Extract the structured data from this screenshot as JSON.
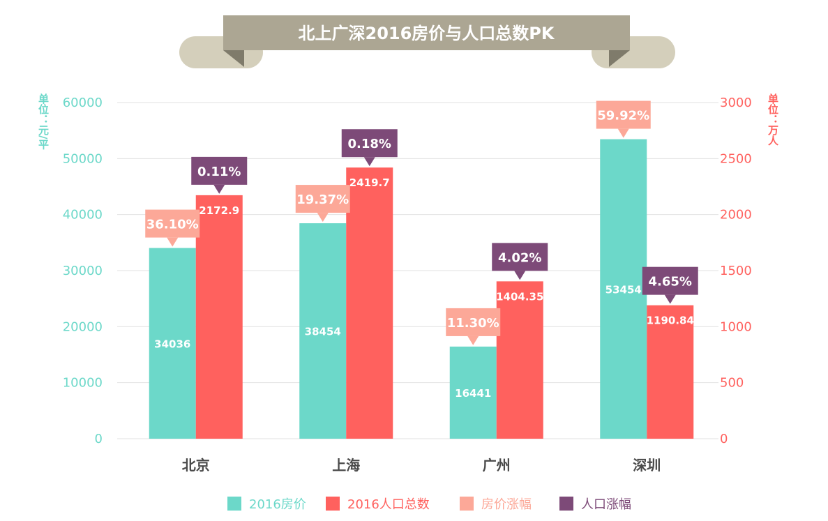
{
  "title": "北上广深2016房价与人口总数PK",
  "colors": {
    "price": "#6cd8c9",
    "population": "#ff615e",
    "price_growth": "#fca898",
    "population_growth": "#7d4a78",
    "banner": "#aca693",
    "banner_tail": "#d4cfbb",
    "banner_fold": "#7f7b6b",
    "grid": "#e2e2e2",
    "category_text": "#4a4a4a"
  },
  "chart_data": {
    "type": "bar",
    "title": "北上广深2016房价与人口总数PK",
    "categories": [
      "北京",
      "上海",
      "广州",
      "深圳"
    ],
    "y_left": {
      "unit_label": "单位：元/平",
      "ylim": [
        0,
        60000
      ],
      "ticks": [
        "0",
        "10000",
        "20000",
        "30000",
        "40000",
        "50000",
        "60000"
      ]
    },
    "y_right": {
      "unit_label": "单位：万人",
      "ylim": [
        0,
        3000
      ],
      "ticks": [
        "0",
        "500",
        "1000",
        "1500",
        "2000",
        "2500",
        "3000"
      ]
    },
    "grid": true,
    "legend_position": "bottom",
    "series": [
      {
        "name": "2016房价",
        "axis": "left",
        "values": [
          34036,
          38454,
          16441,
          53454
        ],
        "labels": [
          "34036",
          "38454",
          "16441",
          "53454"
        ]
      },
      {
        "name": "2016人口总数",
        "axis": "right",
        "values": [
          2172.9,
          2419.7,
          1404.35,
          1190.84
        ],
        "labels": [
          "2172.9",
          "2419.7",
          "1404.35",
          "1190.84"
        ]
      },
      {
        "name": "房价涨幅",
        "marker": "callout",
        "attached_to": "2016房价",
        "labels": [
          "36.10%",
          "19.37%",
          "11.30%",
          "59.92%"
        ]
      },
      {
        "name": "人口涨幅",
        "marker": "callout",
        "attached_to": "2016人口总数",
        "labels": [
          "0.11%",
          "0.18%",
          "4.02%",
          "4.65%"
        ]
      }
    ]
  }
}
